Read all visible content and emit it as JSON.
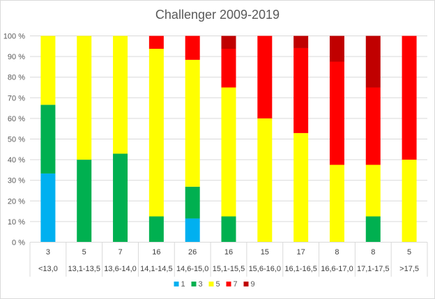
{
  "chart_data": {
    "type": "bar",
    "stacked": "percent",
    "title": "Challenger 2009-2019",
    "ytick_labels": [
      "0 %",
      "10 %",
      "20 %",
      "30 %",
      "40 %",
      "50 %",
      "60 %",
      "70 %",
      "80 %",
      "90 %",
      "100 %"
    ],
    "ylim": [
      0,
      100
    ],
    "grid": true,
    "legend_position": "bottom",
    "counts": [
      "3",
      "5",
      "7",
      "16",
      "26",
      "16",
      "15",
      "17",
      "8",
      "8",
      "5"
    ],
    "categories": [
      "<13,0",
      "13,1-13,5",
      "13,6-14,0",
      "14,1-14,5",
      "14,6-15,0",
      "15,1-15,5",
      "15,6-16,0",
      "16,1-16,5",
      "16,6-17,0",
      "17,1-17,5",
      ">17,5"
    ],
    "series": [
      {
        "name": "1",
        "color": "#00b0f0",
        "values": [
          33.3,
          0,
          0,
          0,
          11.5,
          0,
          0,
          0,
          0,
          0,
          0
        ]
      },
      {
        "name": "3",
        "color": "#00b050",
        "values": [
          33.3,
          40,
          42.9,
          12.5,
          15.4,
          12.5,
          0,
          0,
          0,
          12.5,
          0
        ]
      },
      {
        "name": "5",
        "color": "#ffff00",
        "values": [
          33.4,
          60,
          57.1,
          81.25,
          61.5,
          62.5,
          60,
          52.9,
          37.5,
          25,
          40
        ]
      },
      {
        "name": "7",
        "color": "#ff0000",
        "values": [
          0,
          0,
          0,
          6.25,
          11.6,
          18.75,
          40,
          41.2,
          50,
          37.5,
          60
        ]
      },
      {
        "name": "9",
        "color": "#c00000",
        "values": [
          0,
          0,
          0,
          0,
          0,
          6.25,
          0,
          5.9,
          12.5,
          25,
          0
        ]
      }
    ]
  }
}
